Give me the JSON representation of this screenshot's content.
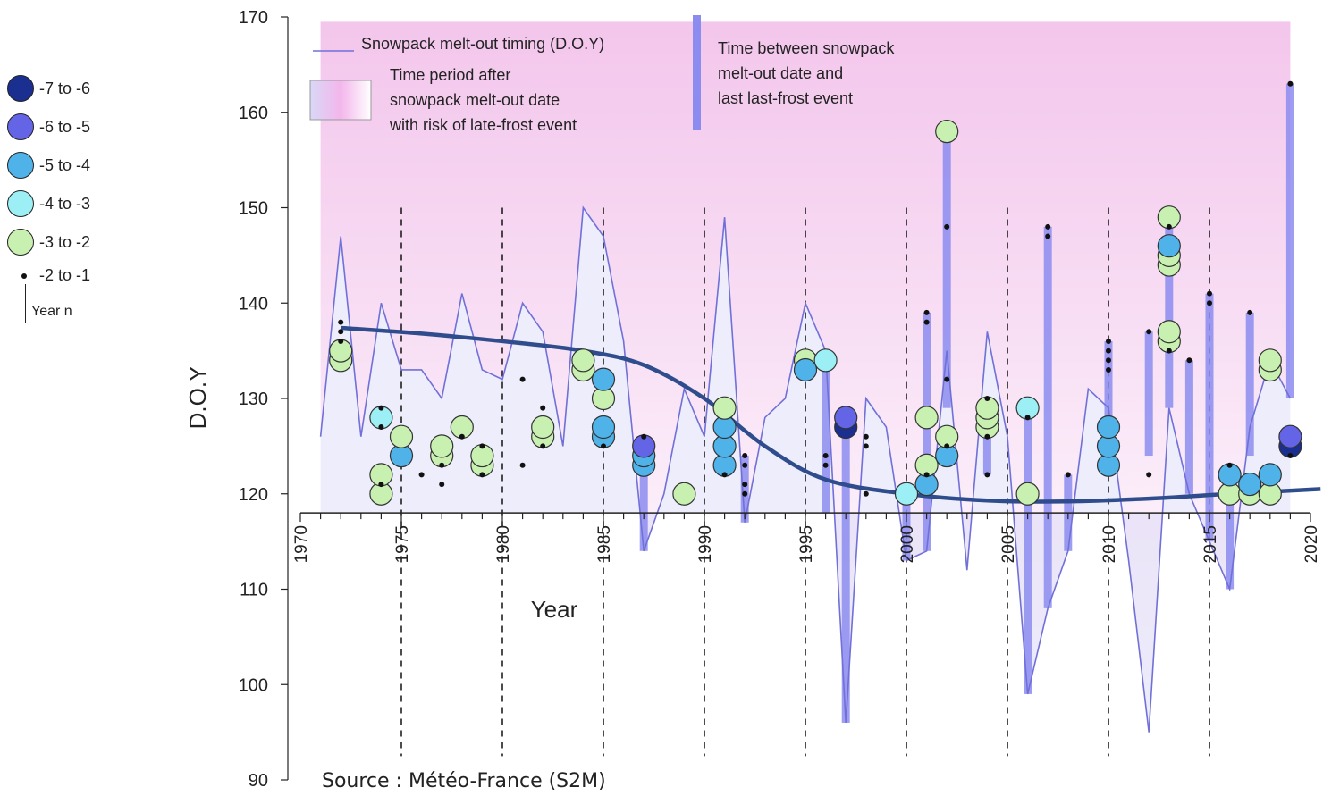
{
  "legend_left": {
    "items": [
      {
        "label": "-7 to -6",
        "color": "#1a2f8f"
      },
      {
        "label": "-6 to -5",
        "color": "#6464e6"
      },
      {
        "label": "-5 to -4",
        "color": "#4fb3ea"
      },
      {
        "label": "-4 to -3",
        "color": "#9cf0f5"
      },
      {
        "label": "-3 to -2",
        "color": "#c8f0b0"
      }
    ],
    "dot_label": "-2 to -1",
    "year_label": "Year n"
  },
  "source": "Source : Météo-France (S2M)",
  "chart_data": {
    "type": "line",
    "xlabel": "Year",
    "ylabel": "D.O.Y",
    "xlim": [
      1970,
      2020
    ],
    "ylim": [
      90,
      170
    ],
    "x_ticks": [
      1970,
      1975,
      1980,
      1985,
      1990,
      1995,
      2000,
      2005,
      2010,
      2015,
      2020
    ],
    "y_ticks": [
      90,
      100,
      110,
      120,
      130,
      140,
      150,
      160,
      170
    ],
    "dashed_vlines": [
      1975,
      1980,
      1985,
      1990,
      1995,
      2000,
      2005,
      2010,
      2015
    ],
    "legend": {
      "line": "Snowpack melt-out timing (D.O.Y)",
      "area": "Time period after snowpack melt-out date with risk of late-frost event",
      "bar": "Time between snowpack melt-out date and last last-frost event"
    },
    "colors": {
      "melt_line": "#7070d8",
      "trend": "#2f4d8c",
      "bar": "#8c8cf0",
      "area_top": "#f3c6ec",
      "below_fill": "#d8d8f6"
    },
    "melt_out": [
      [
        1971,
        126
      ],
      [
        1972,
        147
      ],
      [
        1973,
        126
      ],
      [
        1974,
        140
      ],
      [
        1975,
        133
      ],
      [
        1976,
        133
      ],
      [
        1977,
        130
      ],
      [
        1978,
        141
      ],
      [
        1979,
        133
      ],
      [
        1980,
        132
      ],
      [
        1981,
        140
      ],
      [
        1982,
        137
      ],
      [
        1983,
        125
      ],
      [
        1984,
        150
      ],
      [
        1985,
        147
      ],
      [
        1986,
        136
      ],
      [
        1987,
        114
      ],
      [
        1988,
        120
      ],
      [
        1989,
        131
      ],
      [
        1990,
        126
      ],
      [
        1991,
        149
      ],
      [
        1992,
        117
      ],
      [
        1993,
        128
      ],
      [
        1994,
        130
      ],
      [
        1995,
        140
      ],
      [
        1996,
        135
      ],
      [
        1997,
        96
      ],
      [
        1998,
        130
      ],
      [
        1999,
        127
      ],
      [
        2000,
        113
      ],
      [
        2001,
        114
      ],
      [
        2002,
        135
      ],
      [
        2003,
        112
      ],
      [
        2004,
        137
      ],
      [
        2005,
        126
      ],
      [
        2006,
        99
      ],
      [
        2007,
        108
      ],
      [
        2008,
        114
      ],
      [
        2009,
        131
      ],
      [
        2010,
        129
      ],
      [
        2011,
        113
      ],
      [
        2012,
        95
      ],
      [
        2013,
        129
      ],
      [
        2014,
        120
      ],
      [
        2015,
        115
      ],
      [
        2016,
        110
      ],
      [
        2017,
        127
      ],
      [
        2018,
        134
      ],
      [
        2019,
        130
      ]
    ],
    "trend": [
      [
        1972,
        137.4
      ],
      [
        1976,
        136.8
      ],
      [
        1980,
        136.0
      ],
      [
        1984,
        135.0
      ],
      [
        1987,
        133.5
      ],
      [
        1990,
        130.0
      ],
      [
        1993,
        125.0
      ],
      [
        1996,
        121.5
      ],
      [
        2000,
        120.0
      ],
      [
        2004,
        119.3
      ],
      [
        2008,
        119.2
      ],
      [
        2012,
        119.5
      ],
      [
        2016,
        120.0
      ],
      [
        2020.5,
        120.5
      ]
    ],
    "bars": [
      [
        1987,
        114,
        126
      ],
      [
        1992,
        117,
        124
      ],
      [
        1996,
        118,
        134
      ],
      [
        1997,
        96,
        127
      ],
      [
        2000,
        113,
        121
      ],
      [
        2001,
        114,
        139
      ],
      [
        2002,
        129,
        158
      ],
      [
        2004,
        122,
        130
      ],
      [
        2006,
        99,
        128
      ],
      [
        2007,
        108,
        148
      ],
      [
        2008,
        114,
        122
      ],
      [
        2010,
        123,
        136
      ],
      [
        2012,
        124,
        137
      ],
      [
        2013,
        129,
        148
      ],
      [
        2014,
        120,
        134
      ],
      [
        2015,
        115,
        141
      ],
      [
        2016,
        110,
        123
      ],
      [
        2017,
        124,
        139
      ],
      [
        2019,
        130,
        163
      ]
    ],
    "circles": [
      [
        1972,
        134,
        4
      ],
      [
        1972,
        135,
        4
      ],
      [
        1974,
        120,
        4
      ],
      [
        1974,
        122,
        4
      ],
      [
        1974,
        128,
        3
      ],
      [
        1975,
        124,
        2
      ],
      [
        1975,
        126,
        4
      ],
      [
        1977,
        124,
        4
      ],
      [
        1977,
        125,
        4
      ],
      [
        1978,
        127,
        4
      ],
      [
        1979,
        123,
        4
      ],
      [
        1979,
        124,
        4
      ],
      [
        1982,
        126,
        4
      ],
      [
        1982,
        127,
        4
      ],
      [
        1984,
        133,
        4
      ],
      [
        1984,
        134,
        4
      ],
      [
        1985,
        126,
        2
      ],
      [
        1985,
        127,
        2
      ],
      [
        1985,
        130,
        4
      ],
      [
        1985,
        132,
        2
      ],
      [
        1987,
        123,
        2
      ],
      [
        1987,
        124,
        2
      ],
      [
        1987,
        125,
        1
      ],
      [
        1989,
        120,
        4
      ],
      [
        1991,
        123,
        2
      ],
      [
        1991,
        125,
        2
      ],
      [
        1991,
        127,
        2
      ],
      [
        1991,
        129,
        4
      ],
      [
        1995,
        134,
        4
      ],
      [
        1995,
        133,
        2
      ],
      [
        1996,
        134,
        3
      ],
      [
        1997,
        127,
        0
      ],
      [
        1997,
        128,
        1
      ],
      [
        2000,
        120,
        3
      ],
      [
        2001,
        121,
        2
      ],
      [
        2001,
        123,
        4
      ],
      [
        2001,
        128,
        4
      ],
      [
        2002,
        124,
        2
      ],
      [
        2002,
        126,
        4
      ],
      [
        2002,
        158,
        4
      ],
      [
        2004,
        127,
        4
      ],
      [
        2004,
        128,
        4
      ],
      [
        2004,
        129,
        4
      ],
      [
        2006,
        120,
        4
      ],
      [
        2006,
        129,
        3
      ],
      [
        2010,
        123,
        2
      ],
      [
        2010,
        125,
        2
      ],
      [
        2010,
        127,
        2
      ],
      [
        2013,
        136,
        4
      ],
      [
        2013,
        137,
        4
      ],
      [
        2013,
        144,
        4
      ],
      [
        2013,
        145,
        4
      ],
      [
        2013,
        146,
        2
      ],
      [
        2013,
        149,
        4
      ],
      [
        2016,
        120,
        4
      ],
      [
        2016,
        122,
        2
      ],
      [
        2017,
        120,
        4
      ],
      [
        2017,
        121,
        2
      ],
      [
        2018,
        120,
        4
      ],
      [
        2018,
        122,
        2
      ],
      [
        2018,
        133,
        4
      ],
      [
        2018,
        134,
        4
      ],
      [
        2019,
        125,
        0
      ],
      [
        2019,
        126,
        1
      ]
    ],
    "dots": [
      [
        1972,
        136
      ],
      [
        1972,
        137
      ],
      [
        1972,
        138
      ],
      [
        1974,
        121
      ],
      [
        1974,
        127
      ],
      [
        1974,
        129
      ],
      [
        1976,
        122
      ],
      [
        1977,
        121
      ],
      [
        1977,
        123
      ],
      [
        1978,
        126
      ],
      [
        1979,
        122
      ],
      [
        1979,
        125
      ],
      [
        1981,
        123
      ],
      [
        1981,
        132
      ],
      [
        1982,
        125
      ],
      [
        1982,
        129
      ],
      [
        1985,
        125
      ],
      [
        1987,
        126
      ],
      [
        1991,
        122
      ],
      [
        1992,
        120
      ],
      [
        1992,
        121
      ],
      [
        1992,
        123
      ],
      [
        1992,
        124
      ],
      [
        1996,
        123
      ],
      [
        1996,
        124
      ],
      [
        1998,
        120
      ],
      [
        1998,
        125
      ],
      [
        1998,
        126
      ],
      [
        2001,
        122
      ],
      [
        2001,
        138
      ],
      [
        2001,
        139
      ],
      [
        2002,
        125
      ],
      [
        2002,
        132
      ],
      [
        2002,
        148
      ],
      [
        2004,
        122
      ],
      [
        2004,
        126
      ],
      [
        2004,
        130
      ],
      [
        2006,
        128
      ],
      [
        2007,
        147
      ],
      [
        2007,
        148
      ],
      [
        2008,
        122
      ],
      [
        2010,
        133
      ],
      [
        2010,
        134
      ],
      [
        2010,
        135
      ],
      [
        2010,
        136
      ],
      [
        2012,
        122
      ],
      [
        2012,
        137
      ],
      [
        2013,
        135
      ],
      [
        2013,
        148
      ],
      [
        2014,
        134
      ],
      [
        2015,
        140
      ],
      [
        2015,
        141
      ],
      [
        2016,
        123
      ],
      [
        2017,
        139
      ],
      [
        2019,
        124
      ],
      [
        2019,
        163
      ]
    ]
  }
}
